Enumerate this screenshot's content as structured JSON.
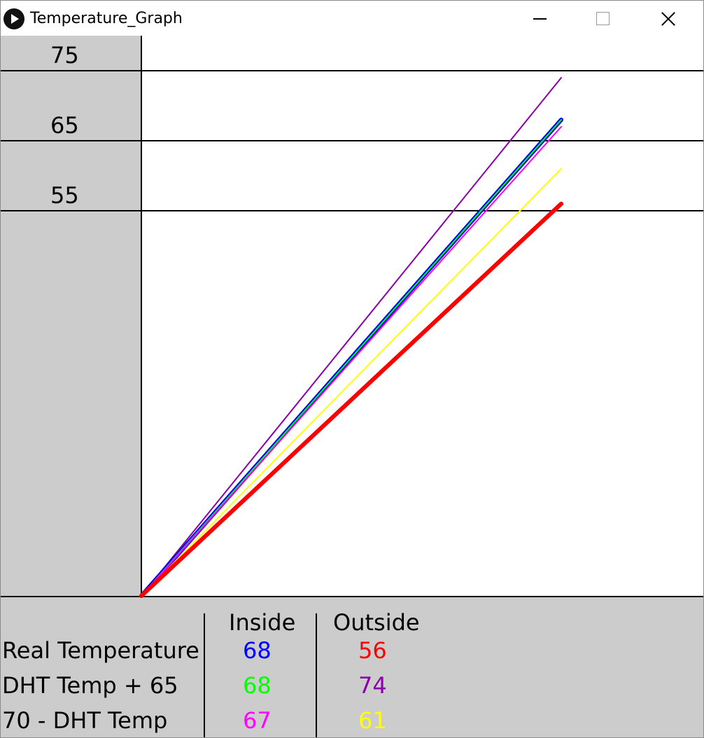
{
  "window": {
    "title": "Temperature_Graph"
  },
  "graph": {
    "gridlines": [
      {
        "label": "75",
        "value": 75
      },
      {
        "label": "65",
        "value": 65
      },
      {
        "label": "55",
        "value": 55
      }
    ],
    "lines": [
      {
        "name": "Outside DHT Temp + 65",
        "color": "#8B00A8",
        "end_value": 74,
        "width": 2
      },
      {
        "name": "Inside Real Temperature",
        "color": "#0000FF",
        "end_value": 68,
        "width": 6
      },
      {
        "name": "Inside DHT Temp + 65",
        "color": "#00FF00",
        "end_value": 68,
        "width": 2
      },
      {
        "name": "Inside 70 - DHT Temp",
        "color": "#FF00FF",
        "end_value": 67,
        "width": 2
      },
      {
        "name": "Outside 70 - DHT Temp",
        "color": "#FFFF00",
        "end_value": 61,
        "width": 2
      },
      {
        "name": "Outside Real Temperature",
        "color": "#FF0000",
        "end_value": 56,
        "width": 6
      }
    ]
  },
  "table": {
    "headers": {
      "inside": "Inside",
      "outside": "Outside"
    },
    "rows": [
      {
        "label": "Real Temperature",
        "inside": "68",
        "outside": "56",
        "inside_color": "#0000FF",
        "outside_color": "#FF0000"
      },
      {
        "label": "DHT Temp + 65",
        "inside": "68",
        "outside": "74",
        "inside_color": "#00FF00",
        "outside_color": "#8B00A8"
      },
      {
        "label": "70 - DHT Temp",
        "inside": "67",
        "outside": "61",
        "inside_color": "#FF00FF",
        "outside_color": "#FFFF00"
      }
    ]
  }
}
